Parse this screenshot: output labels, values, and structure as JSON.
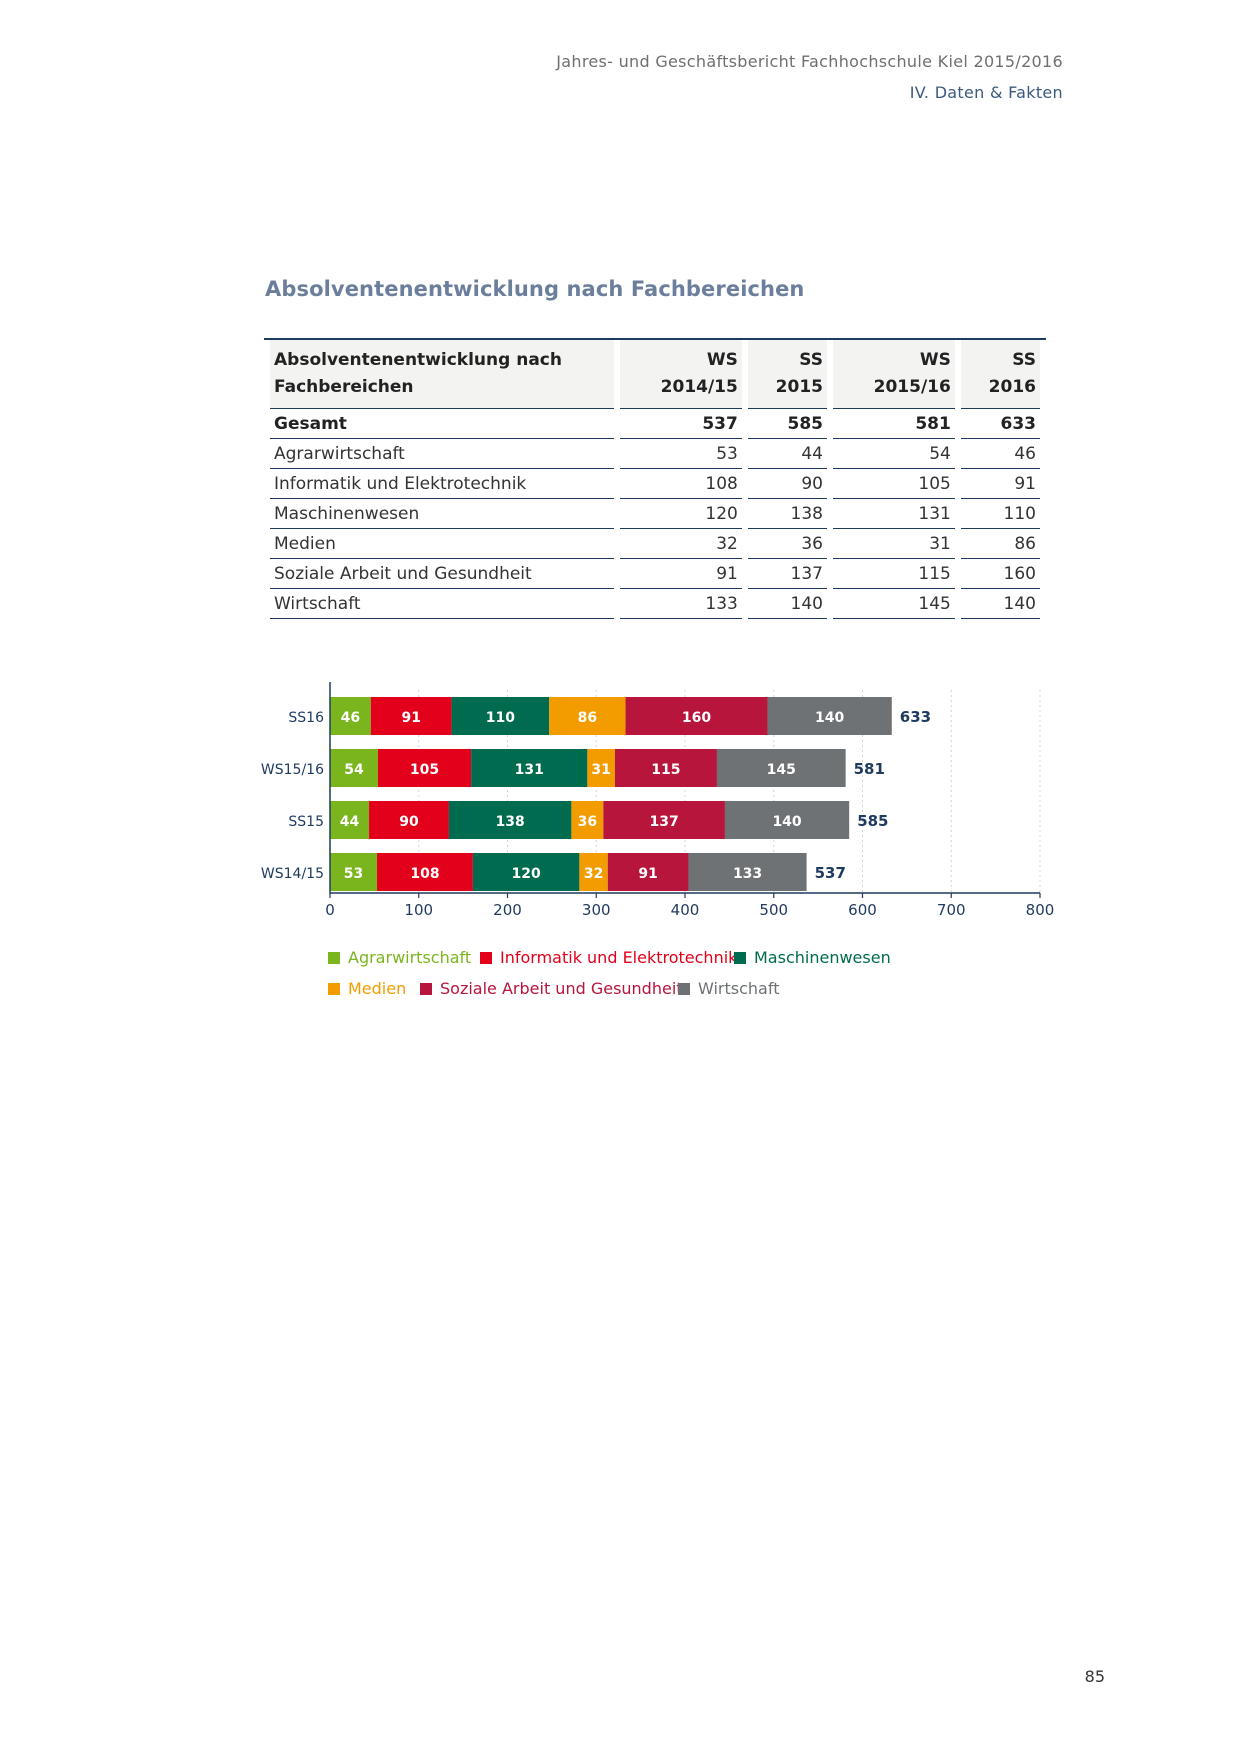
{
  "header": {
    "line1": "Jahres- und Geschäftsbericht Fachhochschule Kiel 2015/2016",
    "line2": "IV. Daten & Fakten"
  },
  "section_title": "Absolventenentwicklung nach Fachbereichen",
  "table": {
    "header_label_line1": "Absolventenentwicklung nach",
    "header_label_line2": "Fachbereichen",
    "columns": [
      {
        "line1": "WS",
        "line2": "2014/15"
      },
      {
        "line1": "SS",
        "line2": "2015"
      },
      {
        "line1": "WS",
        "line2": "2015/16"
      },
      {
        "line1": "SS",
        "line2": "2016"
      }
    ],
    "rows": [
      {
        "label": "Gesamt",
        "values": [
          "537",
          "585",
          "581",
          "633"
        ]
      },
      {
        "label": "Agrarwirtschaft",
        "values": [
          "53",
          "44",
          "54",
          "46"
        ]
      },
      {
        "label": "Informatik und Elektrotechnik",
        "values": [
          "108",
          "90",
          "105",
          "91"
        ]
      },
      {
        "label": "Maschinenwesen",
        "values": [
          "120",
          "138",
          "131",
          "110"
        ]
      },
      {
        "label": "Medien",
        "values": [
          "32",
          "36",
          "31",
          "86"
        ]
      },
      {
        "label": "Soziale Arbeit und Gesundheit",
        "values": [
          "91",
          "137",
          "115",
          "160"
        ]
      },
      {
        "label": "Wirtschaft",
        "values": [
          "133",
          "140",
          "145",
          "140"
        ]
      }
    ]
  },
  "chart_data": {
    "type": "bar",
    "orientation": "horizontal",
    "stacked": true,
    "categories": [
      "SS16",
      "WS15/16",
      "SS15",
      "WS14/15"
    ],
    "series": [
      {
        "name": "Agrarwirtschaft",
        "color": "#7ab51d",
        "label_color": "#ffffff",
        "values": [
          46,
          54,
          44,
          53
        ]
      },
      {
        "name": "Informatik und Elektrotechnik",
        "color": "#e2001a",
        "label_color": "#ffffff",
        "values": [
          91,
          105,
          90,
          108
        ]
      },
      {
        "name": "Maschinenwesen",
        "color": "#006b4f",
        "label_color": "#ffffff",
        "values": [
          110,
          131,
          138,
          120
        ]
      },
      {
        "name": "Medien",
        "color": "#f39c00",
        "label_color": "#ffffff",
        "values": [
          86,
          31,
          36,
          32
        ]
      },
      {
        "name": "Soziale Arbeit und Gesundheit",
        "color": "#b7153c",
        "label_color": "#ffffff",
        "values": [
          160,
          115,
          137,
          91
        ]
      },
      {
        "name": "Wirtschaft",
        "color": "#6f7275",
        "label_color": "#ffffff",
        "values": [
          140,
          145,
          140,
          133
        ]
      }
    ],
    "totals": [
      633,
      581,
      585,
      537
    ],
    "xlim": [
      0,
      800
    ],
    "xticks": [
      0,
      100,
      200,
      300,
      400,
      500,
      600,
      700,
      800
    ],
    "grid": true,
    "legend_placement": "bottom",
    "axis_color": "#1f3a5f",
    "total_label_color": "#1f3a5f"
  },
  "page_number": "85"
}
